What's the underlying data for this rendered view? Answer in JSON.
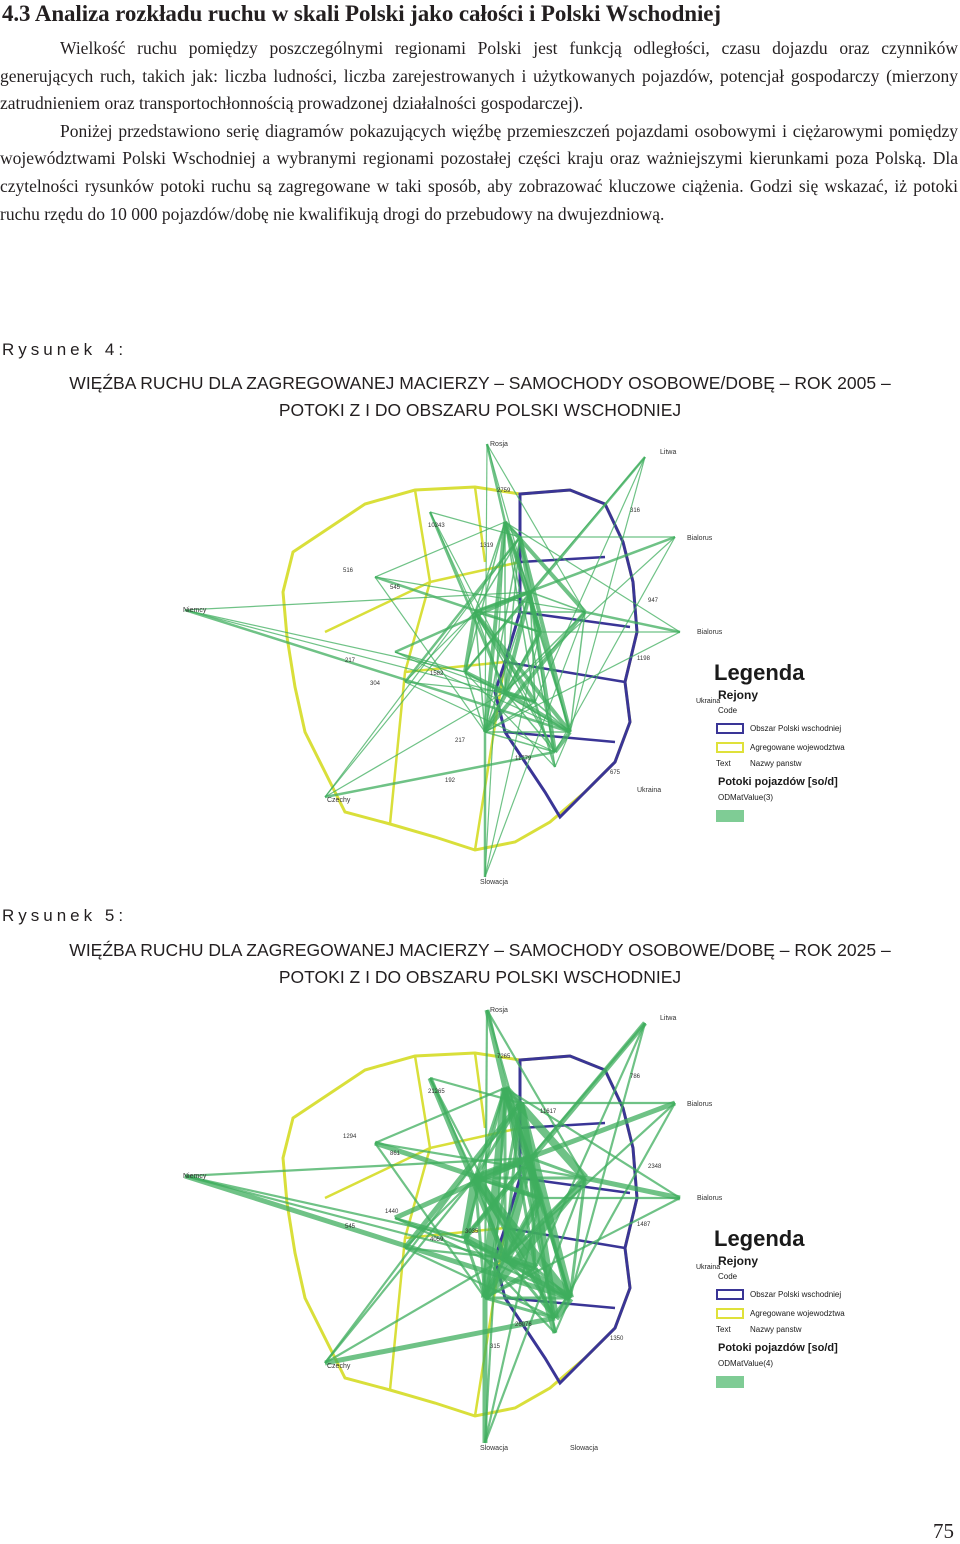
{
  "heading": "4.3 Analiza rozkładu ruchu w skali Polski jako całości i Polski Wschodniej",
  "paragraphs": [
    "Wielkość ruchu pomiędzy poszczególnymi regionami Polski jest funkcją odległości, czasu dojazdu oraz czynników generujących ruch, takich jak: liczba ludności, liczba zarejestrowanych i użytkowanych pojazdów, potencjał gospodarczy (mierzony zatrudnieniem oraz transportochłonnością prowadzonej działalności gospodarczej).",
    "Poniżej przedstawiono serię diagramów pokazujących więźbę przemieszczeń pojazdami osobowymi i ciężarowymi pomiędzy województwami Polski Wschodniej a wybranymi regionami pozostałej części kraju oraz ważniejszymi kierunkami poza Polską. Dla czytelności rysunków potoki ruchu są zagregowane w taki sposób, aby zobrazować kluczowe ciążenia. Godzi się wskazać, iż potoki ruchu rzędu do 10 000 pojazdów/dobę nie kwalifikują drogi do przebudowy na dwujezdniową."
  ],
  "figures": [
    {
      "label": "Rysunek 4:",
      "title_line1": "WIĘŹBA RUCHU DLA ZAGREGOWANEJ MACIERZY – SAMOCHODY OSOBOWE/DOBĘ – ROK 2005 –",
      "title_line2": "POTOKI Z I DO OBSZARU POLSKI WSCHODNIEJ",
      "map_labels": {
        "rosja": "Rosja",
        "litwa": "Litwa",
        "bialorus1": "Bialorus",
        "bialorus2": "Bialorus",
        "niemcy": "Niemcy",
        "czechy": "Czechy",
        "slowacja": "Slowacja",
        "ukraina": "Ukraina"
      },
      "flow_labels": [
        "2759",
        "316",
        "10243",
        "1319",
        "516",
        "545",
        "947",
        "1198",
        "217",
        "304",
        "1582",
        "217",
        "11779",
        "192",
        "675"
      ],
      "legend": {
        "title": "Legenda",
        "subtitle": "Rejony",
        "code": "Code",
        "item1": "Obszar Polski wschodniej",
        "item2": "Agregowane wojewodztwa",
        "text": "Text",
        "item3": "Nazwy panstw",
        "flows": "Potoki pojazdów [so/d]",
        "matrix": "ODMatValue(3)"
      }
    },
    {
      "label": "Rysunek 5:",
      "title_line1": "WIĘŹBA RUCHU DLA ZAGREGOWANEJ MACIERZY – SAMOCHODY OSOBOWE/DOBĘ – ROK 2025 –",
      "title_line2": "POTOKI Z I DO OBSZARU POLSKI WSCHODNIEJ",
      "map_labels": {
        "rosja": "Rosja",
        "litwa": "Litwa",
        "bialorus1": "Bialorus",
        "bialorus2": "Bialorus",
        "niemcy": "Niemcy",
        "czechy": "Czechy",
        "slowacja": "Slowacja",
        "ukraina": "Ukraina"
      },
      "flow_labels": [
        "7265",
        "786",
        "21265",
        "11617",
        "1294",
        "861",
        "2348",
        "1487",
        "545",
        "1440",
        "4059",
        "26076",
        "315",
        "1350",
        "3035"
      ],
      "legend": {
        "title": "Legenda",
        "subtitle": "Rejony",
        "code": "Code",
        "item1": "Obszar Polski wschodniej",
        "item2": "Agregowane wojewodztwa",
        "text": "Text",
        "item3": "Nazwy panstw",
        "flows": "Potoki pojazdów [so/d]",
        "matrix": "ODMatValue(4)"
      }
    }
  ],
  "page_number": "75"
}
